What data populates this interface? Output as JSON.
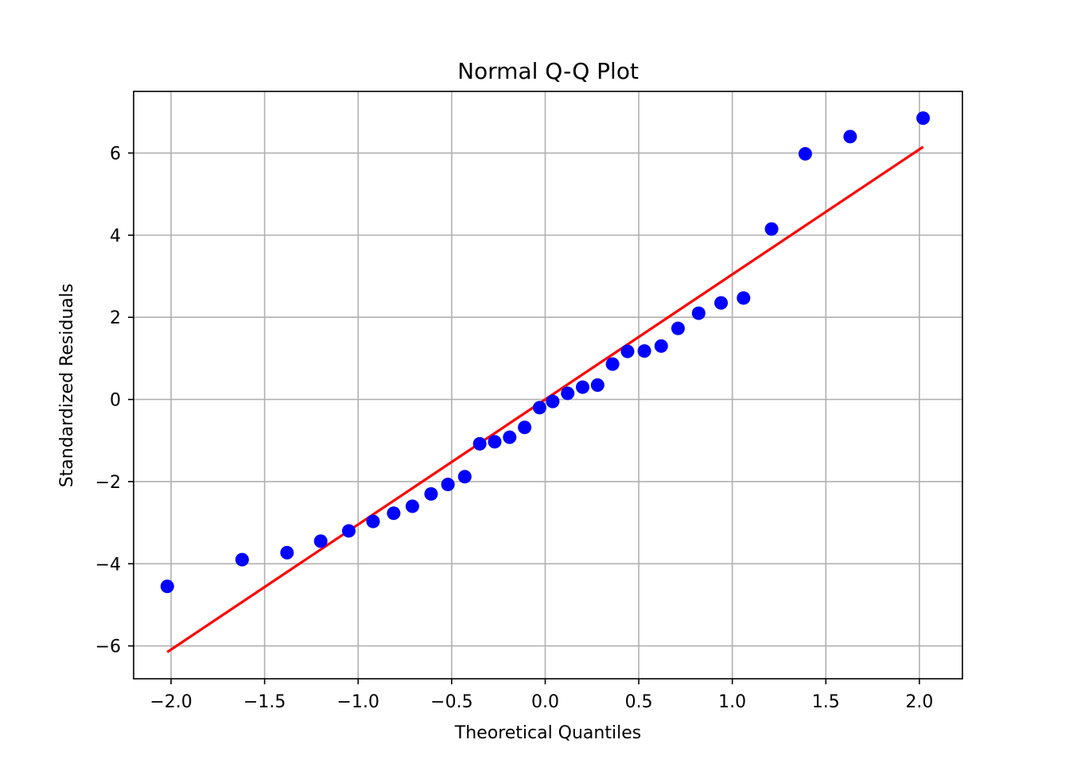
{
  "chart_data": {
    "type": "scatter",
    "title": "Normal Q-Q Plot",
    "xlabel": "Theoretical Quantiles",
    "ylabel": "Standardized Residuals",
    "xlim": [
      -2.2,
      2.23
    ],
    "ylim": [
      -6.8,
      7.5
    ],
    "xticks": [
      -2.0,
      -1.5,
      -1.0,
      -0.5,
      0.0,
      0.5,
      1.0,
      1.5,
      2.0
    ],
    "xtick_labels": [
      "−2.0",
      "−1.5",
      "−1.0",
      "−0.5",
      "0.0",
      "0.5",
      "1.0",
      "1.5",
      "2.0"
    ],
    "yticks": [
      -6,
      -4,
      -2,
      0,
      2,
      4,
      6
    ],
    "ytick_labels": [
      "−6",
      "−4",
      "−2",
      "0",
      "2",
      "4",
      "6"
    ],
    "grid": true,
    "colors": {
      "points": "#0000ff",
      "line": "#ff0000",
      "grid": "#b0b0b0"
    },
    "points": {
      "x": [
        -2.02,
        -1.62,
        -1.38,
        -1.2,
        -1.05,
        -0.92,
        -0.81,
        -0.71,
        -0.61,
        -0.52,
        -0.43,
        -0.35,
        -0.27,
        -0.19,
        -0.11,
        -0.03,
        0.04,
        0.12,
        0.2,
        0.28,
        0.36,
        0.44,
        0.53,
        0.62,
        0.71,
        0.82,
        0.94,
        1.06,
        1.21,
        1.39,
        1.63,
        2.02
      ],
      "y": [
        -4.55,
        -3.9,
        -3.73,
        -3.45,
        -3.2,
        -2.97,
        -2.77,
        -2.6,
        -2.3,
        -2.07,
        -1.88,
        -1.08,
        -1.03,
        -0.92,
        -0.68,
        -0.2,
        -0.05,
        0.15,
        0.3,
        0.35,
        0.86,
        1.17,
        1.18,
        1.3,
        1.73,
        2.1,
        2.35,
        2.47,
        4.15,
        5.98,
        6.4,
        6.85
      ]
    },
    "reference_line": {
      "x": [
        -2.02,
        2.02
      ],
      "y": [
        -6.15,
        6.15
      ]
    }
  }
}
